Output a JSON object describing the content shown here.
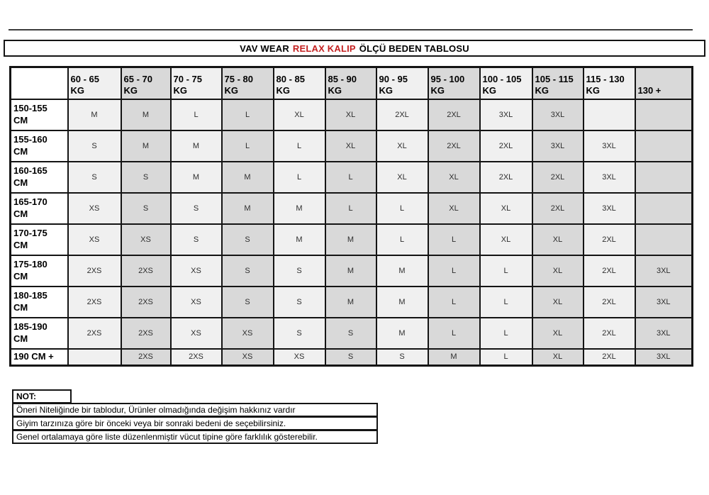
{
  "title": {
    "prefix": "VAV WEAR",
    "highlight": "RELAX KALIP",
    "suffix": "ÖLÇÜ BEDEN TABLOSU"
  },
  "colors": {
    "highlight_red": "#c42020",
    "col_light": "#f0f0f0",
    "col_dark": "#d9d9d9"
  },
  "size_table": {
    "corner_label": "",
    "weight_headers": [
      "60 - 65\nKG",
      "65 - 70\nKG",
      "70 - 75\nKG",
      "75 - 80\nKG",
      "80 - 85\nKG",
      "85 - 90\nKG",
      "90 - 95\nKG",
      "95 - 100\nKG",
      "100 - 105\nKG",
      "105 - 115\nKG",
      "115 - 130\nKG",
      "130 +"
    ],
    "rows": [
      {
        "height_label": "150-155\nCM",
        "sizes": [
          "M",
          "M",
          "L",
          "L",
          "XL",
          "XL",
          "2XL",
          "2XL",
          "3XL",
          "3XL",
          "",
          ""
        ]
      },
      {
        "height_label": "155-160\nCM",
        "sizes": [
          "S",
          "M",
          "M",
          "L",
          "L",
          "XL",
          "XL",
          "2XL",
          "2XL",
          "3XL",
          "3XL",
          ""
        ]
      },
      {
        "height_label": "160-165\nCM",
        "sizes": [
          "S",
          "S",
          "M",
          "M",
          "L",
          "L",
          "XL",
          "XL",
          "2XL",
          "2XL",
          "3XL",
          ""
        ]
      },
      {
        "height_label": "165-170\nCM",
        "sizes": [
          "XS",
          "S",
          "S",
          "M",
          "M",
          "L",
          "L",
          "XL",
          "XL",
          "2XL",
          "3XL",
          ""
        ]
      },
      {
        "height_label": "170-175\nCM",
        "sizes": [
          "XS",
          "XS",
          "S",
          "S",
          "M",
          "M",
          "L",
          "L",
          "XL",
          "XL",
          "2XL",
          ""
        ]
      },
      {
        "height_label": "175-180\nCM",
        "sizes": [
          "2XS",
          "2XS",
          "XS",
          "S",
          "S",
          "M",
          "M",
          "L",
          "L",
          "XL",
          "2XL",
          "3XL"
        ]
      },
      {
        "height_label": "180-185\nCM",
        "sizes": [
          "2XS",
          "2XS",
          "XS",
          "S",
          "S",
          "M",
          "M",
          "L",
          "L",
          "XL",
          "2XL",
          "3XL"
        ]
      },
      {
        "height_label": "185-190\nCM",
        "sizes": [
          "2XS",
          "2XS",
          "XS",
          "XS",
          "S",
          "S",
          "M",
          "L",
          "L",
          "XL",
          "2XL",
          "3XL"
        ]
      },
      {
        "height_label": "190 CM +",
        "sizes": [
          "",
          "2XS",
          "2XS",
          "XS",
          "XS",
          "S",
          "S",
          "M",
          "L",
          "XL",
          "2XL",
          "3XL"
        ]
      }
    ]
  },
  "notes": {
    "label": "NOT:",
    "items": [
      "Öneri Niteliğinde bir tablodur, Ürünler olmadığında değişim hakkınız vardır",
      "Giyim tarzınıza göre bir önceki veya bir sonraki bedeni de seçebilirsiniz.",
      "Genel ortalamaya göre liste düzenlenmiştir vücut tipine göre farklılık gösterebilir."
    ]
  }
}
